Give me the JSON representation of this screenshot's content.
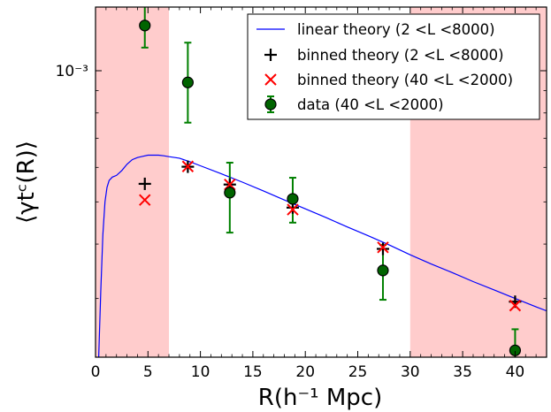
{
  "chart_data": {
    "type": "scatter",
    "xlabel": "R(h⁻¹ Mpc)",
    "ylabel": "⟨γtᶜ(R)⟩",
    "xlim": [
      0,
      43
    ],
    "ylim": [
      0.00022,
      0.0014
    ],
    "yscale": "log",
    "x_ticks": [
      0,
      5,
      10,
      15,
      20,
      25,
      30,
      35,
      40
    ],
    "y_tick_labels": [
      {
        "value": 0.001,
        "label": "10⁻³"
      }
    ],
    "shaded_regions": [
      {
        "x_range": [
          0,
          7
        ],
        "color": "#ffcccc"
      },
      {
        "x_range": [
          30,
          43
        ],
        "color": "#ffcccc"
      }
    ],
    "legend_position": "top-right",
    "series": [
      {
        "name": "linear theory (2 <L <8000)",
        "style": "line",
        "color": "#0000ff",
        "x": [
          0.3,
          0.5,
          0.7,
          0.9,
          1.1,
          1.3,
          1.6,
          2.0,
          2.5,
          3.0,
          3.5,
          4.0,
          4.5,
          5.0,
          5.5,
          6.0,
          6.5,
          7.0,
          8.0,
          9.0,
          10.0,
          12.0,
          14.0,
          16.0,
          18.0,
          20.0,
          22.0,
          24.0,
          26.0,
          28.0,
          30.0,
          32.0,
          34.0,
          36.0,
          38.0,
          40.0,
          42.0,
          43.0
        ],
        "y": [
          0.00022,
          0.00031,
          0.00042,
          0.0005,
          0.00054,
          0.00056,
          0.00057,
          0.000575,
          0.00059,
          0.00061,
          0.000625,
          0.000632,
          0.000636,
          0.00064,
          0.00064,
          0.00064,
          0.000638,
          0.000635,
          0.00063,
          0.000618,
          0.000605,
          0.00058,
          0.000555,
          0.00053,
          0.000505,
          0.000482,
          0.00046,
          0.000438,
          0.000418,
          0.000398,
          0.000378,
          0.00036,
          0.000344,
          0.000328,
          0.000314,
          0.0003,
          0.000287,
          0.000281
        ]
      },
      {
        "name": "binned theory (2 <L <8000)",
        "style": "plus",
        "color": "#000000",
        "x": [
          4.7,
          8.8,
          12.8,
          18.8,
          27.4,
          40.0
        ],
        "y": [
          0.00055,
          0.000602,
          0.000548,
          0.000485,
          0.00039,
          0.000295
        ]
      },
      {
        "name": "binned theory (40 <L <2000)",
        "style": "x",
        "color": "#ff0000",
        "x": [
          4.7,
          8.8,
          12.8,
          18.8,
          27.4,
          40.0
        ],
        "y": [
          0.000505,
          0.000603,
          0.000548,
          0.00048,
          0.000393,
          0.000289
        ]
      },
      {
        "name": "data (40 <L <2000)",
        "style": "errorbar",
        "color": "#006400",
        "errorbar_color": "#008000",
        "x": [
          4.7,
          8.8,
          12.8,
          18.8,
          27.4,
          40.0
        ],
        "y": [
          0.00127,
          0.00094,
          0.000525,
          0.000508,
          0.000348,
          0.000228
        ],
        "yerr_low": [
          0.00014,
          0.00018,
          0.0001,
          6e-05,
          5e-05,
          1.8e-05
        ],
        "yerr_high": [
          0.00017,
          0.00022,
          9e-05,
          6e-05,
          5e-05,
          2.7e-05
        ]
      }
    ]
  }
}
